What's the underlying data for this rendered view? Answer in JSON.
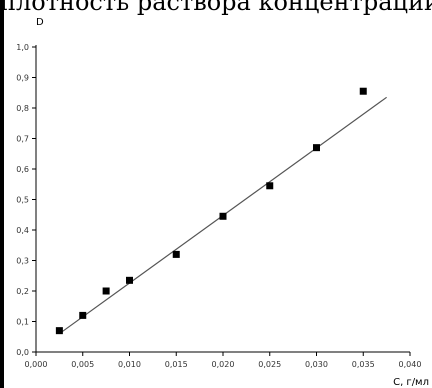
{
  "page": {
    "header_fragment": "плотность раствора концентрации"
  },
  "chart_data": {
    "type": "scatter",
    "title": "",
    "xlabel": "C, г/мл",
    "ylabel": "D",
    "xlim": [
      0.0,
      0.04
    ],
    "ylim": [
      0.0,
      1.0
    ],
    "x_ticks": [
      0.0,
      0.005,
      0.01,
      0.015,
      0.02,
      0.025,
      0.03,
      0.035,
      0.04
    ],
    "x_tick_labels": [
      "0,000",
      "0,005",
      "0,010",
      "0,015",
      "0,020",
      "0,025",
      "0,030",
      "0,035",
      "0,040"
    ],
    "y_ticks": [
      0.0,
      0.1,
      0.2,
      0.3,
      0.4,
      0.5,
      0.6,
      0.7,
      0.8,
      0.9,
      1.0
    ],
    "y_tick_labels": [
      "0,0",
      "0,1",
      "0,2",
      "0,3",
      "0,4",
      "0,5",
      "0,6",
      "0,7",
      "0,8",
      "0,9",
      "1,0"
    ],
    "grid": false,
    "points": [
      {
        "x": 0.0025,
        "y": 0.07
      },
      {
        "x": 0.005,
        "y": 0.12
      },
      {
        "x": 0.0075,
        "y": 0.2
      },
      {
        "x": 0.01,
        "y": 0.235
      },
      {
        "x": 0.015,
        "y": 0.32
      },
      {
        "x": 0.02,
        "y": 0.445
      },
      {
        "x": 0.025,
        "y": 0.545
      },
      {
        "x": 0.03,
        "y": 0.67
      },
      {
        "x": 0.035,
        "y": 0.855
      }
    ],
    "fit_line": {
      "x": [
        0.0025,
        0.0375
      ],
      "y": [
        0.06,
        0.835
      ]
    },
    "colors": {
      "marker": "#000000",
      "line": "#555555",
      "axis": "#000000"
    }
  }
}
